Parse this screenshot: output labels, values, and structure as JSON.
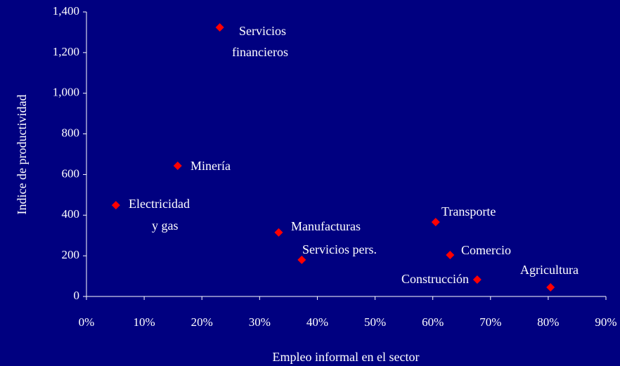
{
  "chart_data": {
    "type": "scatter",
    "x_label": "Empleo informal en el sector",
    "y_label": "Indice de productividad",
    "x": [
      23.1,
      15.8,
      5.1,
      33.3,
      37.3,
      60.5,
      63.0,
      67.7,
      80.4
    ],
    "values": [
      1324,
      643,
      449,
      315,
      180,
      366,
      204,
      83,
      45
    ],
    "point_labels": [
      [
        "Servicios",
        "financieros"
      ],
      [
        "Minería"
      ],
      [
        "Electricidad",
        "y gas"
      ],
      [
        "Manufacturas"
      ],
      [
        "Servicios pers."
      ],
      [
        "Transporte"
      ],
      [
        "Comercio"
      ],
      [
        "Construcción"
      ],
      [
        "Agricultura"
      ]
    ],
    "color": "#ff0000",
    "xlim": [
      0,
      90
    ],
    "xticks": [
      {
        "value": 0,
        "label": "0%"
      },
      {
        "value": 10,
        "label": "10%"
      },
      {
        "value": 20,
        "label": "20%"
      },
      {
        "value": 30,
        "label": "30%"
      },
      {
        "value": 40,
        "label": "40%"
      },
      {
        "value": 50,
        "label": "50%"
      },
      {
        "value": 60,
        "label": "60%"
      },
      {
        "value": 70,
        "label": "70%"
      },
      {
        "value": 80,
        "label": "80%"
      },
      {
        "value": 90,
        "label": "90%"
      }
    ],
    "ylim": [
      0,
      1400
    ],
    "yticks": [
      0,
      200,
      400,
      600,
      800,
      {
        "value": 1000,
        "label": "1,000"
      },
      {
        "value": 1200,
        "label": "1,200"
      },
      {
        "value": 1400,
        "label": "1,400"
      }
    ],
    "grid": false
  }
}
